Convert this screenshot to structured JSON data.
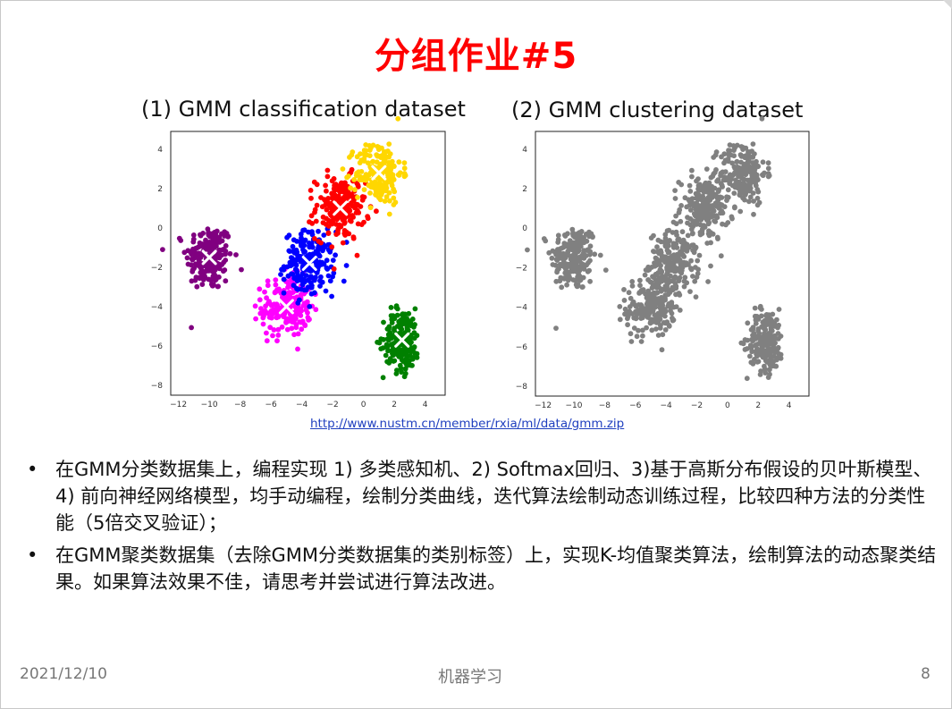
{
  "slide": {
    "title": "分组作业#5",
    "link": "http://www.nustm.cn/member/rxia/ml/data/gmm.zip",
    "bullets": [
      "在GMM分类数据集上，编程实现 1) 多类感知机、2) Softmax回归、3)基于高斯分布假设的贝叶斯模型、4) 前向神经网络模型，均手动编程，绘制分类曲线，迭代算法绘制动态训练过程，比较四种方法的分类性能（5倍交叉验证）；",
      "在GMM聚类数据集（去除GMM分类数据集的类别标签）上，实现K-均值聚类算法，绘制算法的动态聚类结果。如果算法效果不佳，请思考并尝试进行算法改进。"
    ],
    "bullet_symbol": "•",
    "footer": {
      "date": "2021/12/10",
      "center": "机器学习",
      "page": "8"
    }
  },
  "chart_data": [
    {
      "type": "scatter",
      "title": "(1) GMM classification dataset",
      "xlim": [
        -12.5,
        5.3
      ],
      "ylim": [
        -8.5,
        4.9
      ],
      "xticks": [
        -12,
        -10,
        -8,
        -6,
        -4,
        -2,
        0,
        2,
        4
      ],
      "yticks": [
        4,
        2,
        0,
        -2,
        -4,
        -6,
        -8
      ],
      "grid": false,
      "legend": "none",
      "clusters": [
        {
          "color": "#800080",
          "center": [
            -10,
            -1.5
          ],
          "std": [
            0.75,
            0.85
          ],
          "count": 200,
          "marker": "x"
        },
        {
          "color": "#ff00ff",
          "center": [
            -5,
            -4
          ],
          "std": [
            0.8,
            0.75
          ],
          "count": 200,
          "marker": "x"
        },
        {
          "color": "#0000ff",
          "center": [
            -3.5,
            -1.8
          ],
          "std": [
            0.8,
            0.8
          ],
          "count": 200,
          "marker": "x"
        },
        {
          "color": "#ff0000",
          "center": [
            -1.5,
            1
          ],
          "std": [
            0.8,
            0.8
          ],
          "count": 200,
          "marker": "x"
        },
        {
          "color": "#ffd700",
          "center": [
            1,
            2.8
          ],
          "std": [
            0.75,
            0.8
          ],
          "count": 200,
          "marker": "x"
        },
        {
          "color": "#008000",
          "center": [
            2.5,
            -5.7
          ],
          "std": [
            0.6,
            0.8
          ],
          "count": 200,
          "marker": "x"
        }
      ]
    },
    {
      "type": "scatter",
      "title": "(2) GMM clustering dataset",
      "xlim": [
        -12.5,
        5.3
      ],
      "ylim": [
        -8.5,
        4.9
      ],
      "xticks": [
        -12,
        -10,
        -8,
        -6,
        -4,
        -2,
        0,
        2,
        4
      ],
      "yticks": [
        4,
        2,
        0,
        -2,
        -4,
        -6,
        -8
      ],
      "grid": false,
      "legend": "none",
      "clusters": [
        {
          "color": "#808080",
          "center": [
            -10,
            -1.5
          ],
          "std": [
            0.75,
            0.85
          ],
          "count": 200
        },
        {
          "color": "#808080",
          "center": [
            -5,
            -4
          ],
          "std": [
            0.8,
            0.75
          ],
          "count": 200
        },
        {
          "color": "#808080",
          "center": [
            -3.5,
            -1.8
          ],
          "std": [
            0.8,
            0.8
          ],
          "count": 200
        },
        {
          "color": "#808080",
          "center": [
            -1.5,
            1
          ],
          "std": [
            0.8,
            0.8
          ],
          "count": 200
        },
        {
          "color": "#808080",
          "center": [
            1,
            2.8
          ],
          "std": [
            0.75,
            0.8
          ],
          "count": 200
        },
        {
          "color": "#808080",
          "center": [
            2.5,
            -5.7
          ],
          "std": [
            0.6,
            0.8
          ],
          "count": 200
        }
      ]
    }
  ]
}
